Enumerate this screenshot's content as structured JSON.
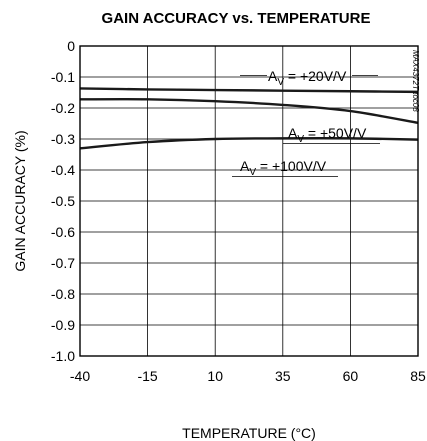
{
  "chart_data": {
    "type": "line",
    "title": "GAIN ACCURACY vs. TEMPERATURE",
    "xlabel": "TEMPERATURE (°C)",
    "ylabel": "GAIN ACCURACY (%)",
    "xlim": [
      -40,
      85
    ],
    "ylim": [
      -1.0,
      0
    ],
    "x_ticks": [
      -40,
      -15,
      10,
      35,
      60,
      85
    ],
    "x_tick_labels": [
      "-40",
      "-15",
      "10",
      "35",
      "60",
      "85"
    ],
    "y_ticks": [
      0,
      -0.1,
      -0.2,
      -0.3,
      -0.4,
      -0.5,
      -0.6,
      -0.7,
      -0.8,
      -0.9,
      -1.0
    ],
    "y_tick_labels": [
      "0",
      "-0.1",
      "-0.2",
      "-0.3",
      "-0.4",
      "-0.5",
      "-0.6",
      "-0.7",
      "-0.8",
      "-0.9",
      "-1.0"
    ],
    "grid": true,
    "x": [
      -40,
      -15,
      10,
      35,
      60,
      85
    ],
    "series": [
      {
        "label_main": "A",
        "label_sub": "V",
        "label_rest": " = +20V/V",
        "values": [
          -0.137,
          -0.14,
          -0.142,
          -0.144,
          -0.146,
          -0.148
        ]
      },
      {
        "label_main": "A",
        "label_sub": "V",
        "label_rest": " = +50V/V",
        "values": [
          -0.172,
          -0.172,
          -0.178,
          -0.19,
          -0.21,
          -0.248
        ]
      },
      {
        "label_main": "A",
        "label_sub": "V",
        "label_rest": " = +100V/V",
        "values": [
          -0.33,
          -0.31,
          -0.3,
          -0.298,
          -0.298,
          -0.302
        ]
      }
    ],
    "watermark": "MAX4372T toc08"
  }
}
